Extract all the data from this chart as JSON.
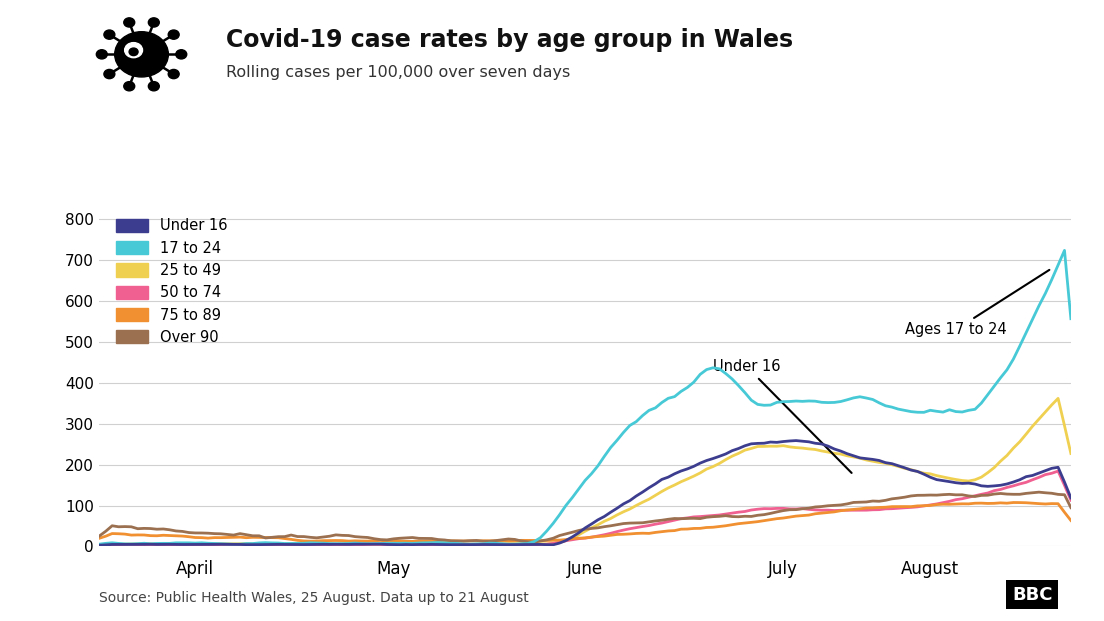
{
  "title": "Covid-19 case rates by age group in Wales",
  "subtitle": "Rolling cases per 100,000 over seven days",
  "source": "Source: Public Health Wales, 25 August. Data up to 21 August",
  "ylim": [
    0,
    820
  ],
  "yticks": [
    0,
    100,
    200,
    300,
    400,
    500,
    600,
    700,
    800
  ],
  "background_color": "#ffffff",
  "series": {
    "under16": {
      "label": "Under 16",
      "color": "#3d3d8f"
    },
    "17to24": {
      "label": "17 to 24",
      "color": "#47c9d6"
    },
    "25to49": {
      "label": "25 to 49",
      "color": "#f0d050"
    },
    "50to74": {
      "label": "50 to 74",
      "color": "#f06090"
    },
    "75to89": {
      "label": "75 to 89",
      "color": "#f09030"
    },
    "over90": {
      "label": "Over 90",
      "color": "#9a7050"
    }
  },
  "month_ticks": [
    15,
    46,
    76,
    107,
    130
  ],
  "month_labels": [
    "April",
    "May",
    "June",
    "July",
    "August"
  ]
}
